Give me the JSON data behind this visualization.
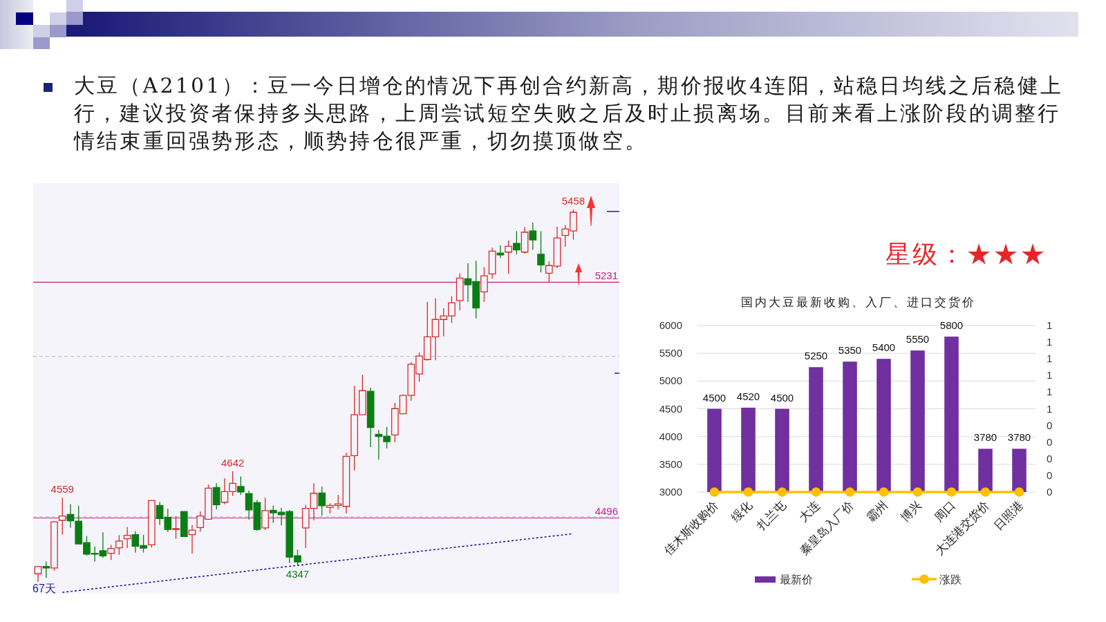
{
  "chart_data": [
    {
      "type": "other",
      "title": "大豆（A2101）：豆一今日增仓的情况下再创合约新高，期价报收4连阳，站稳日均线之后稳健上行，建议投资者保持多头思路，上周尝试短空失败之后及时止损离场。目前来看上涨阶段的调整行情结束重回强势形态，顺势持仓很严重，切勿摸顶做空。"
    },
    {
      "type": "candlestick",
      "categories": [
        null,
        null,
        null,
        null,
        null,
        null,
        null,
        null,
        null,
        null,
        null,
        null,
        null,
        null,
        null,
        null,
        null,
        null,
        null,
        null,
        null,
        null,
        null,
        null,
        null,
        null,
        null,
        null,
        null,
        null,
        null,
        null,
        null,
        null,
        null,
        null,
        null,
        null,
        null,
        null,
        null,
        null,
        null,
        null,
        null,
        null,
        null,
        null,
        null,
        null,
        null,
        null,
        null,
        null,
        null,
        null,
        null,
        null,
        null,
        null,
        null,
        null,
        null,
        null,
        null,
        null,
        null
      ],
      "ohlc": [
        [
          4322,
          4345,
          4297,
          4345
        ],
        [
          4345,
          4360,
          4309,
          4340
        ],
        [
          4340,
          4487,
          4331,
          4484
        ],
        [
          4489,
          4559,
          4444,
          4502
        ],
        [
          4507,
          4539,
          4466,
          4487
        ],
        [
          4486,
          4534,
          4414,
          4415
        ],
        [
          4419,
          4440,
          4379,
          4383
        ],
        [
          4386,
          4407,
          4360,
          4383
        ],
        [
          4394,
          4451,
          4372,
          4378
        ],
        [
          4386,
          4412,
          4365,
          4401
        ],
        [
          4403,
          4442,
          4381,
          4424
        ],
        [
          4431,
          4468,
          4402,
          4442
        ],
        [
          4444,
          4455,
          4388,
          4408
        ],
        [
          4410,
          4443,
          4388,
          4402
        ],
        [
          4412,
          4550,
          4404,
          4550
        ],
        [
          4535,
          4546,
          4474,
          4494
        ],
        [
          4498,
          4525,
          4453,
          4460
        ],
        [
          4461,
          4502,
          4431,
          4462
        ],
        [
          4516,
          4517,
          4437,
          4438
        ],
        [
          4444,
          4474,
          4385,
          4458
        ],
        [
          4466,
          4516,
          4453,
          4502
        ],
        [
          4492,
          4600,
          4491,
          4589
        ],
        [
          4591,
          4604,
          4523,
          4537
        ],
        [
          4545,
          4620,
          4539,
          4578
        ],
        [
          4578,
          4642,
          4565,
          4604
        ],
        [
          4594,
          4626,
          4568,
          4577
        ],
        [
          4572,
          4581,
          4491,
          4521
        ],
        [
          4544,
          4552,
          4456,
          4460
        ],
        [
          4465,
          4559,
          4458,
          4519
        ],
        [
          4520,
          4535,
          4481,
          4512
        ],
        [
          4514,
          4528,
          4473,
          4506
        ],
        [
          4516,
          4521,
          4355,
          4374
        ],
        [
          4378,
          4397,
          4347,
          4359
        ],
        [
          4465,
          4537,
          4402,
          4526
        ],
        [
          4526,
          4604,
          4489,
          4573
        ],
        [
          4574,
          4594,
          4503,
          4534
        ],
        [
          4529,
          4542,
          4510,
          4535
        ],
        [
          4535,
          4568,
          4523,
          4540
        ],
        [
          4532,
          4699,
          4510,
          4688
        ],
        [
          4690,
          4908,
          4644,
          4818
        ],
        [
          4818,
          4942,
          4818,
          4893
        ],
        [
          4891,
          4902,
          4717,
          4778
        ],
        [
          4757,
          4770,
          4678,
          4750
        ],
        [
          4751,
          4780,
          4713,
          4734
        ],
        [
          4755,
          4855,
          4732,
          4837
        ],
        [
          4821,
          4881,
          4820,
          4878
        ],
        [
          4878,
          4982,
          4862,
          4975
        ],
        [
          4945,
          5012,
          4921,
          5001
        ],
        [
          4990,
          5170,
          4987,
          5061
        ],
        [
          5061,
          5181,
          4988,
          5115
        ],
        [
          5115,
          5150,
          5062,
          5126
        ],
        [
          5126,
          5187,
          5104,
          5167
        ],
        [
          5174,
          5258,
          5143,
          5244
        ],
        [
          5242,
          5290,
          5170,
          5223
        ],
        [
          5233,
          5298,
          5118,
          5151
        ],
        [
          5201,
          5278,
          5170,
          5251
        ],
        [
          5257,
          5339,
          5242,
          5328
        ],
        [
          5322,
          5346,
          5307,
          5316
        ],
        [
          5325,
          5361,
          5257,
          5343
        ],
        [
          5352,
          5390,
          5318,
          5332
        ],
        [
          5325,
          5403,
          5320,
          5387
        ],
        [
          5391,
          5417,
          5332,
          5363
        ],
        [
          5318,
          5390,
          5262,
          5285
        ],
        [
          5259,
          5296,
          5231,
          5283
        ],
        [
          5281,
          5404,
          5275,
          5369
        ],
        [
          5377,
          5409,
          5341,
          5397
        ],
        [
          5391,
          5458,
          5364,
          5449
        ]
      ],
      "colors": [
        "#d82828",
        "#0a7d14",
        "#d82828",
        "#d82828",
        "#0a7d14",
        "#0a7d14",
        "#0a7d14",
        "#0a7d14",
        "#0a7d14",
        "#d82828",
        "#d82828",
        "#d82828",
        "#0a7d14",
        "#0a7d14",
        "#d82828",
        "#0a7d14",
        "#0a7d14",
        "#d82828",
        "#0a7d14",
        "#d82828",
        "#d82828",
        "#d82828",
        "#0a7d14",
        "#d82828",
        "#d82828",
        "#0a7d14",
        "#0a7d14",
        "#0a7d14",
        "#d82828",
        "#0a7d14",
        "#0a7d14",
        "#0a7d14",
        "#0a7d14",
        "#d82828",
        "#d82828",
        "#0a7d14",
        "#d82828",
        "#d82828",
        "#d82828",
        "#d82828",
        "#d82828",
        "#0a7d14",
        "#0a7d14",
        "#0a7d14",
        "#d82828",
        "#d82828",
        "#d82828",
        "#d82828",
        "#d82828",
        "#d82828",
        "#d82828",
        "#d82828",
        "#d82828",
        "#0a7d14",
        "#0a7d14",
        "#d82828",
        "#d82828",
        "#0a7d14",
        "#d82828",
        "#0a7d14",
        "#d82828",
        "#0a7d14",
        "#0a7d14",
        "#d82828",
        "#d82828",
        "#d82828",
        "#d82828"
      ],
      "value_labels": [
        null,
        null,
        null,
        "4559",
        null,
        null,
        null,
        null,
        null,
        null,
        null,
        null,
        null,
        null,
        null,
        null,
        null,
        null,
        null,
        null,
        null,
        null,
        null,
        null,
        "4642",
        null,
        null,
        null,
        null,
        null,
        null,
        null,
        "4347",
        null,
        null,
        null,
        null,
        null,
        null,
        null,
        null,
        null,
        null,
        null,
        null,
        null,
        null,
        null,
        null,
        null,
        null,
        null,
        null,
        null,
        null,
        null,
        null,
        null,
        null,
        null,
        null,
        null,
        null,
        null,
        null,
        null,
        "5458"
      ],
      "ylim": [
        4260,
        5540
      ],
      "series": [
        {
          "type": "line",
          "color": "#1c1ca0",
          "line_style": "dotted",
          "values": [
            null,
            null,
            null,
            4264,
            null,
            null,
            null,
            null,
            null,
            null,
            null,
            null,
            null,
            null,
            null,
            null,
            null,
            null,
            null,
            null,
            null,
            null,
            null,
            null,
            null,
            null,
            null,
            null,
            null,
            null,
            null,
            null,
            null,
            null,
            null,
            null,
            null,
            null,
            null,
            null,
            null,
            null,
            null,
            null,
            null,
            null,
            null,
            null,
            null,
            null,
            null,
            null,
            null,
            null,
            null,
            null,
            null,
            null,
            null,
            null,
            null,
            null,
            null,
            null,
            null,
            null,
            4447
          ]
        }
      ],
      "ref_lines": [
        {
          "axis": "y",
          "value": 5000,
          "color": "#c4c4cc",
          "line_style": "dashed"
        },
        {
          "axis": "y",
          "value": 4500,
          "color": "#c4c4cc",
          "line_style": "dashed"
        },
        {
          "axis": "y",
          "value": 5231,
          "label": "5231",
          "color": "#c81e8c"
        },
        {
          "axis": "y",
          "value": 4496,
          "label": "4496",
          "color": "#c81e8c"
        }
      ],
      "annotations": [
        "67天"
      ]
    },
    {
      "type": "other",
      "title": "星级：★★★"
    },
    {
      "type": "bar",
      "title": "国内大豆最新收购、入厂、进口交货价",
      "categories": [
        "佳木斯收购价",
        "绥化",
        "扎兰屯",
        "大连",
        "秦皇岛入厂价",
        "霸州",
        "博兴",
        "周口",
        "大连港交货价",
        "日照港"
      ],
      "series": [
        {
          "name": "最新价",
          "color": "#7030a0",
          "values": [
            4500,
            4520,
            4500,
            5250,
            5350,
            5400,
            5550,
            5800,
            3780,
            3780
          ],
          "value_labels": [
            "4500",
            "4520",
            "4500",
            "5250",
            "5350",
            "5400",
            "5550",
            "5800",
            "3780",
            "3780"
          ]
        },
        {
          "name": "涨跌",
          "type": "line",
          "axis": "y2",
          "color": "#ffc000",
          "marker": "circle",
          "values": [
            0,
            0,
            0,
            0,
            0,
            0,
            0,
            0,
            0,
            0
          ]
        }
      ],
      "ylim": [
        3000,
        6000
      ],
      "yticks": [
        3000,
        3500,
        4000,
        4500,
        5000,
        5500,
        6000
      ],
      "y2lim": [
        0,
        1
      ],
      "y2ticks": [
        0,
        {
          "value": 0.1,
          "label": "0"
        },
        {
          "value": 0.2,
          "label": "0"
        },
        {
          "value": 0.3,
          "label": "0"
        },
        {
          "value": 0.4,
          "label": "0"
        },
        {
          "value": 0.5,
          "label": "1"
        },
        {
          "value": 0.6,
          "label": "1"
        },
        {
          "value": 0.7,
          "label": "1"
        },
        {
          "value": 0.8,
          "label": "1"
        },
        {
          "value": 0.9,
          "label": "1"
        },
        1
      ],
      "grid": "y",
      "legend": "bottom"
    }
  ]
}
